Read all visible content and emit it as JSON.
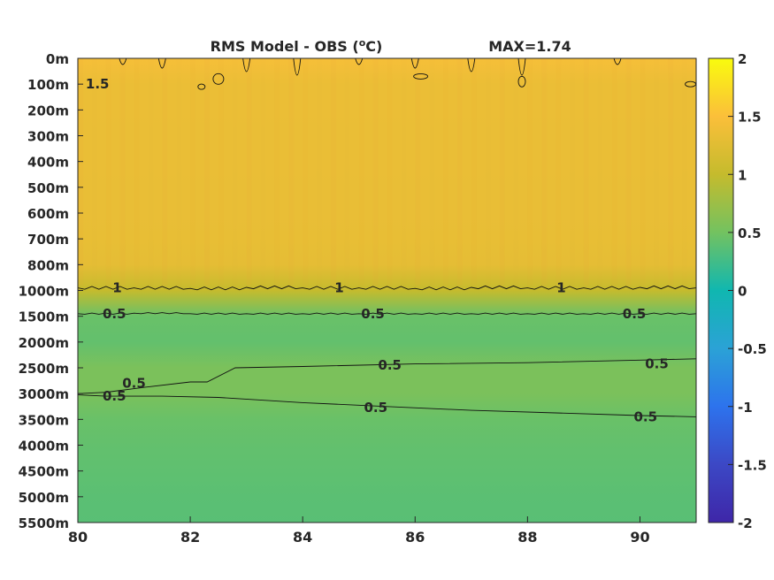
{
  "chart_data": {
    "type": "heatmap",
    "title": "RMS Model - OBS (",
    "title_unit_sup": "o",
    "title_unit_tail": "C)",
    "max_label": "MAX=1.74",
    "x_ticks": [
      80,
      82,
      84,
      86,
      88,
      90
    ],
    "xlim": [
      80,
      91
    ],
    "y_tick_labels": [
      "0m",
      "100m",
      "200m",
      "300m",
      "400m",
      "500m",
      "600m",
      "700m",
      "800m",
      "1000m",
      "1500m",
      "2000m",
      "2500m",
      "3000m",
      "3500m",
      "4000m",
      "4500m",
      "5000m",
      "5500m"
    ],
    "colorbar": {
      "range": [
        -2,
        2
      ],
      "ticks": [
        2,
        1.5,
        1,
        0.5,
        0,
        -0.5,
        -1,
        -1.5,
        -2
      ],
      "tick_labels": [
        "2",
        "1.5",
        "1",
        "0.5",
        "0",
        "-0.5",
        "-1",
        "-1.5",
        "-2"
      ],
      "colormap": "parula"
    },
    "field_levels": [
      {
        "depth": "0m",
        "value": 1.45
      },
      {
        "depth": "100m",
        "value": 1.35
      },
      {
        "depth": "200m",
        "value": 1.35
      },
      {
        "depth": "300m",
        "value": 1.34
      },
      {
        "depth": "400m",
        "value": 1.34
      },
      {
        "depth": "500m",
        "value": 1.33
      },
      {
        "depth": "600m",
        "value": 1.33
      },
      {
        "depth": "700m",
        "value": 1.32
      },
      {
        "depth": "800m",
        "value": 1.3
      },
      {
        "depth": "1000m",
        "value": 1.0
      },
      {
        "depth": "1500m",
        "value": 0.45
      },
      {
        "depth": "2000m",
        "value": 0.42
      },
      {
        "depth": "2500m",
        "value": 0.55
      },
      {
        "depth": "3000m",
        "value": 0.55
      },
      {
        "depth": "3500m",
        "value": 0.45
      },
      {
        "depth": "4000m",
        "value": 0.42
      },
      {
        "depth": "4500m",
        "value": 0.4
      },
      {
        "depth": "5000m",
        "value": 0.38
      },
      {
        "depth": "5500m",
        "value": 0.37
      }
    ],
    "contour_labels": [
      {
        "text": "1.5",
        "x": 80.35,
        "depth_index": 1.0
      },
      {
        "text": "1",
        "x": 80.7,
        "depth_index": 8.9
      },
      {
        "text": "1",
        "x": 84.65,
        "depth_index": 8.9
      },
      {
        "text": "1",
        "x": 88.6,
        "depth_index": 8.9
      },
      {
        "text": "0.5",
        "x": 80.65,
        "depth_index": 9.9
      },
      {
        "text": "0.5",
        "x": 85.25,
        "depth_index": 9.9
      },
      {
        "text": "0.5",
        "x": 89.9,
        "depth_index": 9.9
      },
      {
        "text": "0.5",
        "x": 81.0,
        "depth_index": 12.6
      },
      {
        "text": "0.5",
        "x": 80.65,
        "depth_index": 13.1
      },
      {
        "text": "0.5",
        "x": 85.55,
        "depth_index": 11.9
      },
      {
        "text": "0.5",
        "x": 90.3,
        "depth_index": 11.85
      },
      {
        "text": "0.5",
        "x": 85.3,
        "depth_index": 13.55
      },
      {
        "text": "0.5",
        "x": 90.1,
        "depth_index": 13.9
      }
    ],
    "contour_lines": [
      {
        "level": 1,
        "x": [
          80,
          81,
          82,
          83,
          84,
          85,
          86,
          87,
          88,
          89,
          90,
          91
        ],
        "depth_index": [
          8.9,
          8.9,
          8.92,
          8.88,
          8.9,
          8.9,
          8.92,
          8.88,
          8.9,
          8.9,
          8.88,
          8.9
        ]
      },
      {
        "level": 0.5,
        "x": [
          80,
          81,
          82,
          83,
          84,
          85,
          86,
          87,
          88,
          89,
          90,
          91
        ],
        "depth_index": [
          9.9,
          9.88,
          9.9,
          9.9,
          9.9,
          9.9,
          9.9,
          9.9,
          9.9,
          9.9,
          9.9,
          9.9
        ]
      },
      {
        "level": 0.5,
        "x": [
          80,
          80.5,
          81.2,
          82,
          82.3,
          82.8,
          84,
          86,
          88,
          90,
          91
        ],
        "depth_index": [
          13.0,
          12.95,
          12.75,
          12.55,
          12.55,
          12.0,
          11.95,
          11.85,
          11.8,
          11.7,
          11.65
        ]
      },
      {
        "level": 0.5,
        "x": [
          80,
          80.5,
          81.5,
          82.5,
          84,
          85.5,
          87,
          88.5,
          90,
          91
        ],
        "depth_index": [
          13.05,
          13.1,
          13.1,
          13.15,
          13.35,
          13.5,
          13.65,
          13.75,
          13.85,
          13.9
        ]
      }
    ]
  }
}
